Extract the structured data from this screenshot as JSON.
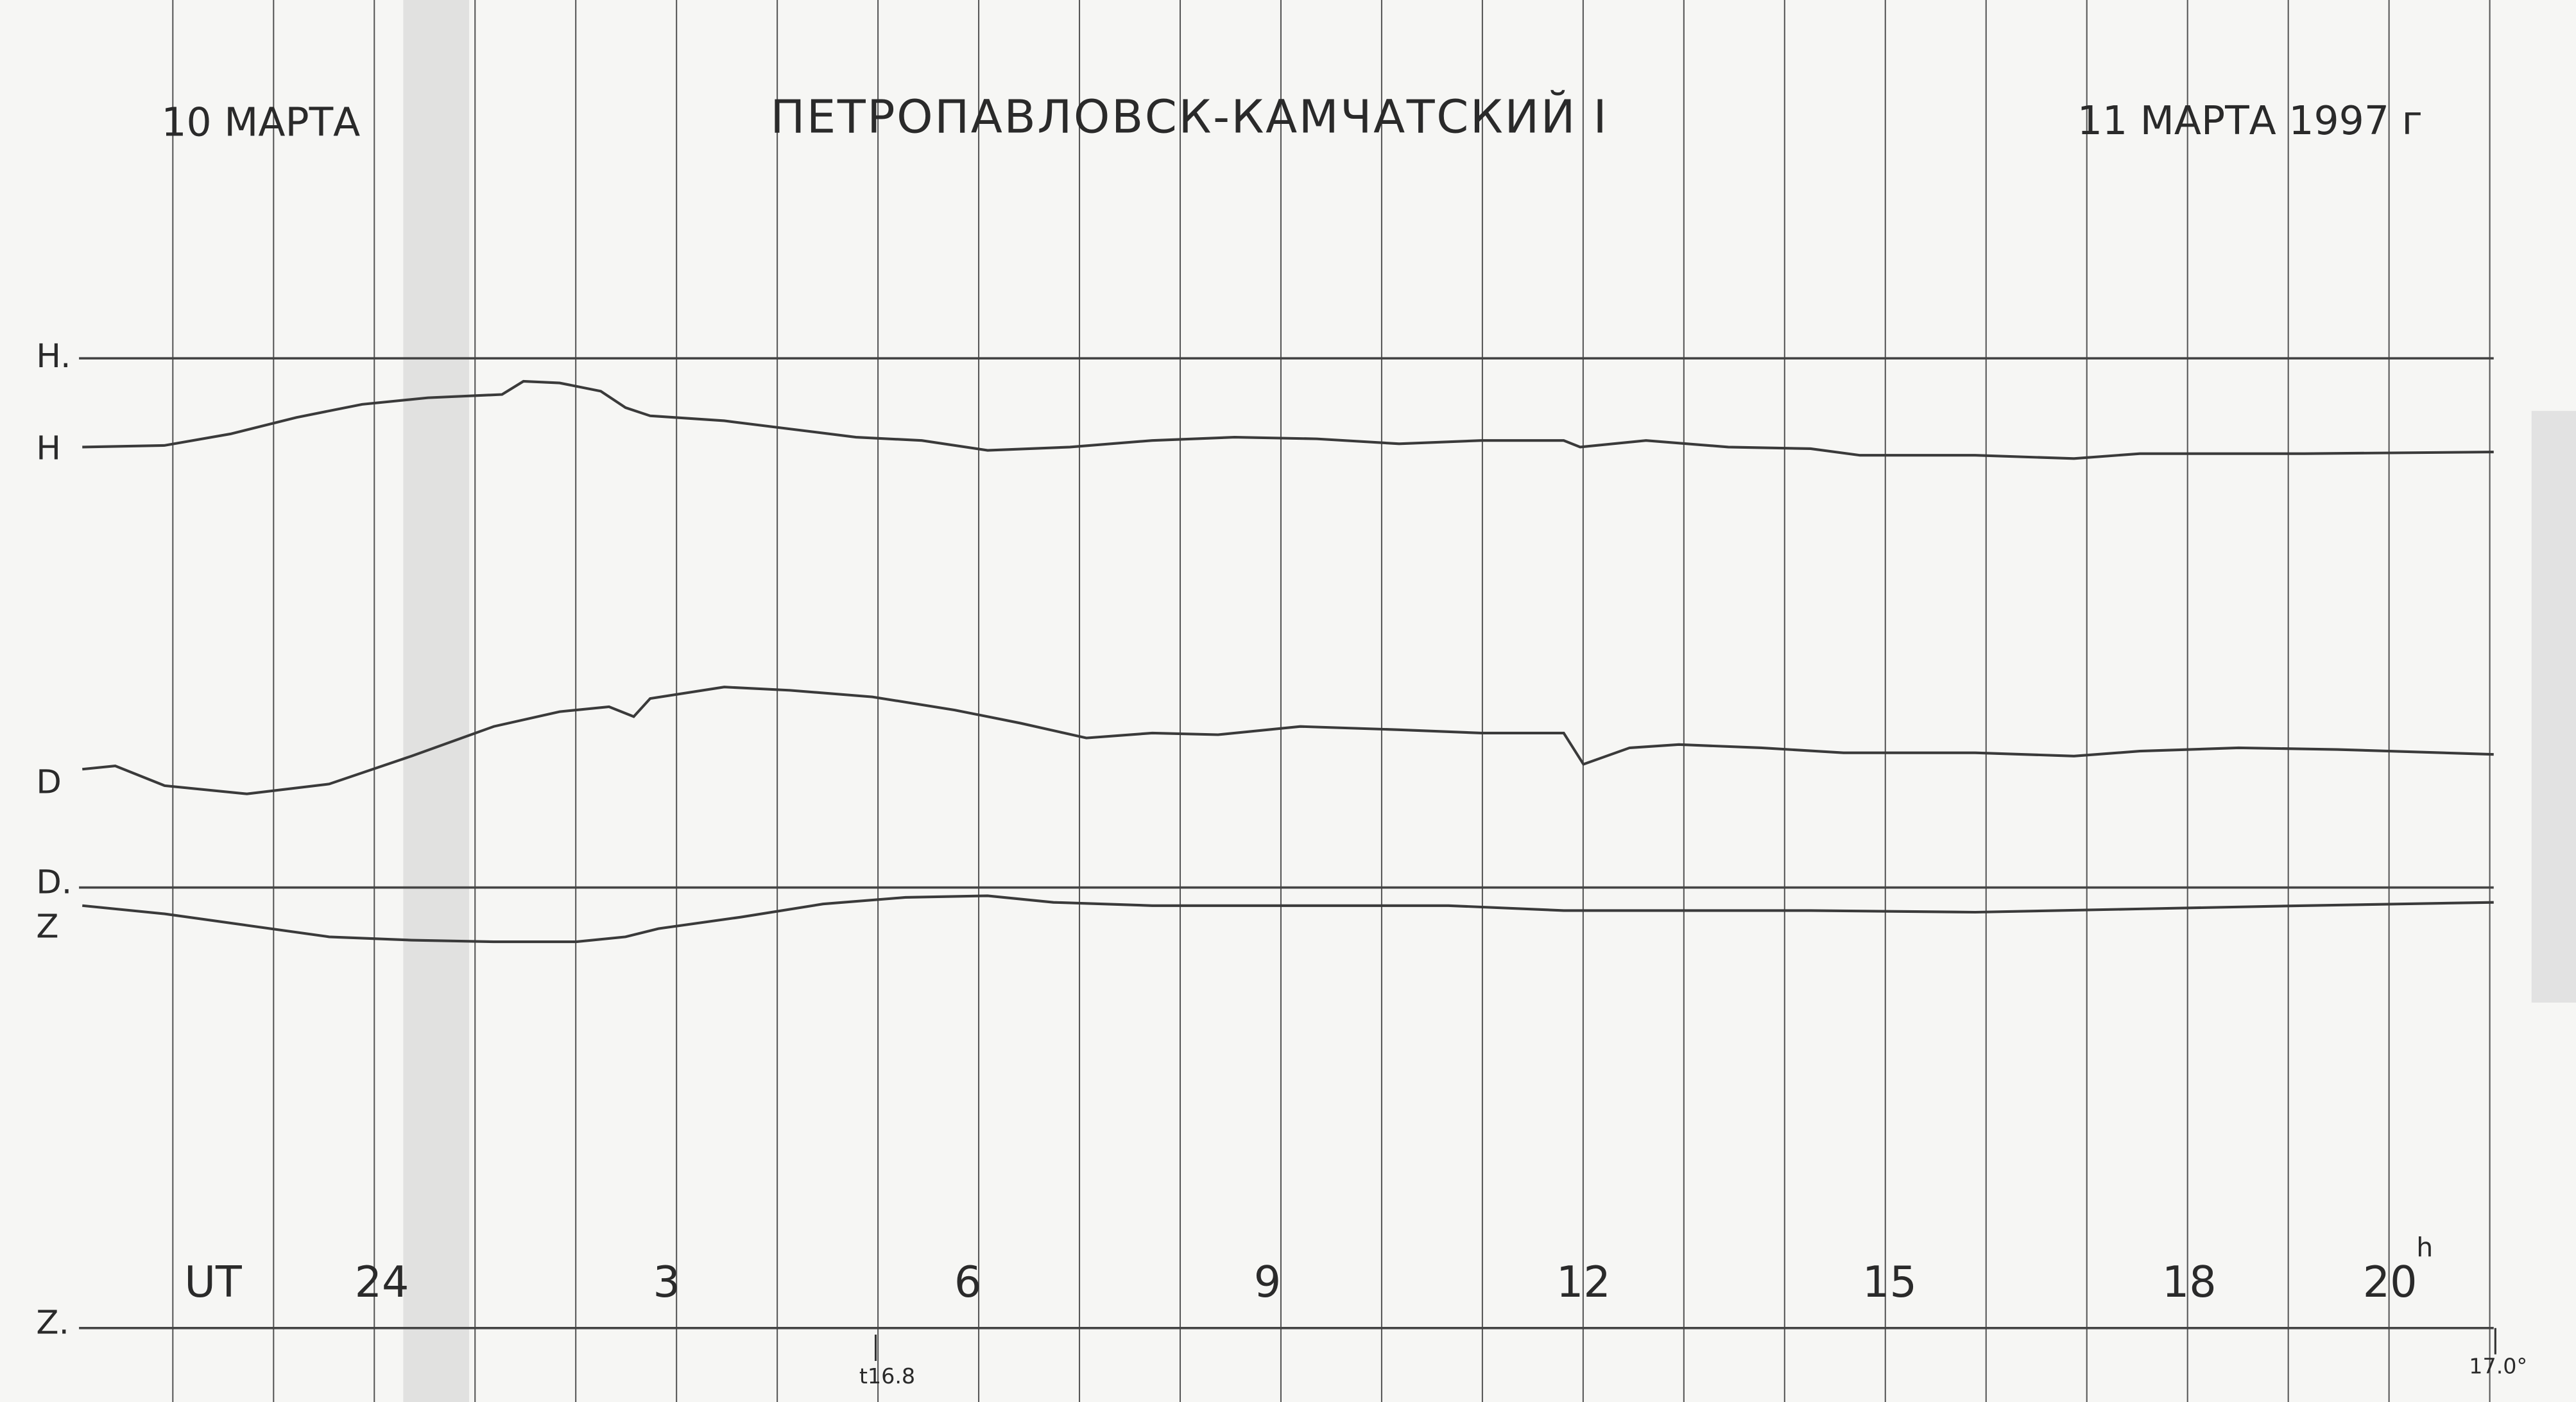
{
  "header": {
    "left_date": "10 МАРТА",
    "title": "ПЕТРОПАВЛОВСК-КАМЧАТСКИЙ I",
    "right_date": "11 МАРТА 1997 г"
  },
  "trace_labels": {
    "h_base": "H.",
    "h": "H",
    "d": "D",
    "d_base": "D.",
    "z": "Z",
    "z_base": "Z."
  },
  "time_axis": {
    "label": "UT",
    "ticks": [
      "24",
      "3",
      "6",
      "9",
      "12",
      "15",
      "18",
      "20"
    ],
    "unit": "h"
  },
  "temperature": {
    "start": "t16.8",
    "end": "17.0°"
  }
}
